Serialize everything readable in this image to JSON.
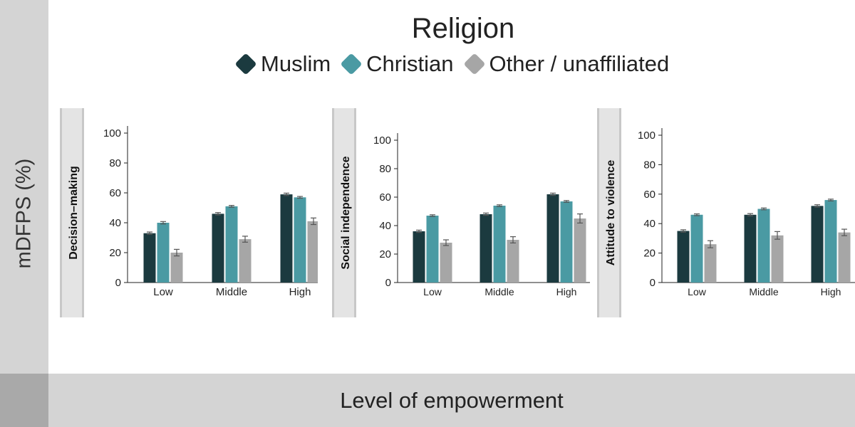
{
  "legend": {
    "title": "Religion",
    "items": [
      {
        "label": "Muslim",
        "color": "#1b3a3f"
      },
      {
        "label": "Christian",
        "color": "#4a9aa3"
      },
      {
        "label": "Other / unaffiliated",
        "color": "#a6a6a6"
      }
    ]
  },
  "axes": {
    "ylabel": "mDFPS (%)",
    "xlabel": "Level of empowerment"
  },
  "chart_data": [
    {
      "type": "bar",
      "title": "Decision–making",
      "categories": [
        "Low",
        "Middle",
        "High"
      ],
      "ylim": [
        0,
        100
      ],
      "yticks": [
        0,
        20,
        40,
        60,
        80,
        100
      ],
      "series": [
        {
          "name": "Muslim",
          "color": "#1b3a3f",
          "values": [
            33,
            46,
            59
          ],
          "errors": [
            0.8,
            0.8,
            0.8
          ]
        },
        {
          "name": "Christian",
          "color": "#4a9aa3",
          "values": [
            40,
            51,
            57
          ],
          "errors": [
            0.8,
            0.6,
            0.6
          ]
        },
        {
          "name": "Other / unaffiliated",
          "color": "#a6a6a6",
          "values": [
            20,
            29,
            41
          ],
          "errors": [
            2.2,
            2.0,
            2.2
          ]
        }
      ]
    },
    {
      "type": "bar",
      "title": "Social independence",
      "categories": [
        "Low",
        "Middle",
        "High"
      ],
      "ylim": [
        0,
        100
      ],
      "yticks": [
        0,
        20,
        40,
        60,
        80,
        100
      ],
      "series": [
        {
          "name": "Muslim",
          "color": "#1b3a3f",
          "values": [
            36,
            48,
            62
          ],
          "errors": [
            0.8,
            0.8,
            0.8
          ]
        },
        {
          "name": "Christian",
          "color": "#4a9aa3",
          "values": [
            47,
            54,
            57
          ],
          "errors": [
            0.6,
            0.6,
            0.6
          ]
        },
        {
          "name": "Other / unaffiliated",
          "color": "#a6a6a6",
          "values": [
            28,
            30,
            45
          ],
          "errors": [
            2.0,
            2.2,
            3.2
          ]
        }
      ]
    },
    {
      "type": "bar",
      "title": "Attitude to violence",
      "categories": [
        "Low",
        "Middle",
        "High"
      ],
      "ylim": [
        0,
        100
      ],
      "yticks": [
        0,
        20,
        40,
        60,
        80,
        100
      ],
      "series": [
        {
          "name": "Muslim",
          "color": "#1b3a3f",
          "values": [
            35,
            46,
            52
          ],
          "errors": [
            0.8,
            0.8,
            0.8
          ]
        },
        {
          "name": "Christian",
          "color": "#4a9aa3",
          "values": [
            46,
            50,
            56
          ],
          "errors": [
            0.6,
            0.6,
            0.6
          ]
        },
        {
          "name": "Other / unaffiliated",
          "color": "#a6a6a6",
          "values": [
            26,
            32,
            34
          ],
          "errors": [
            2.4,
            2.6,
            2.2
          ]
        }
      ]
    }
  ]
}
